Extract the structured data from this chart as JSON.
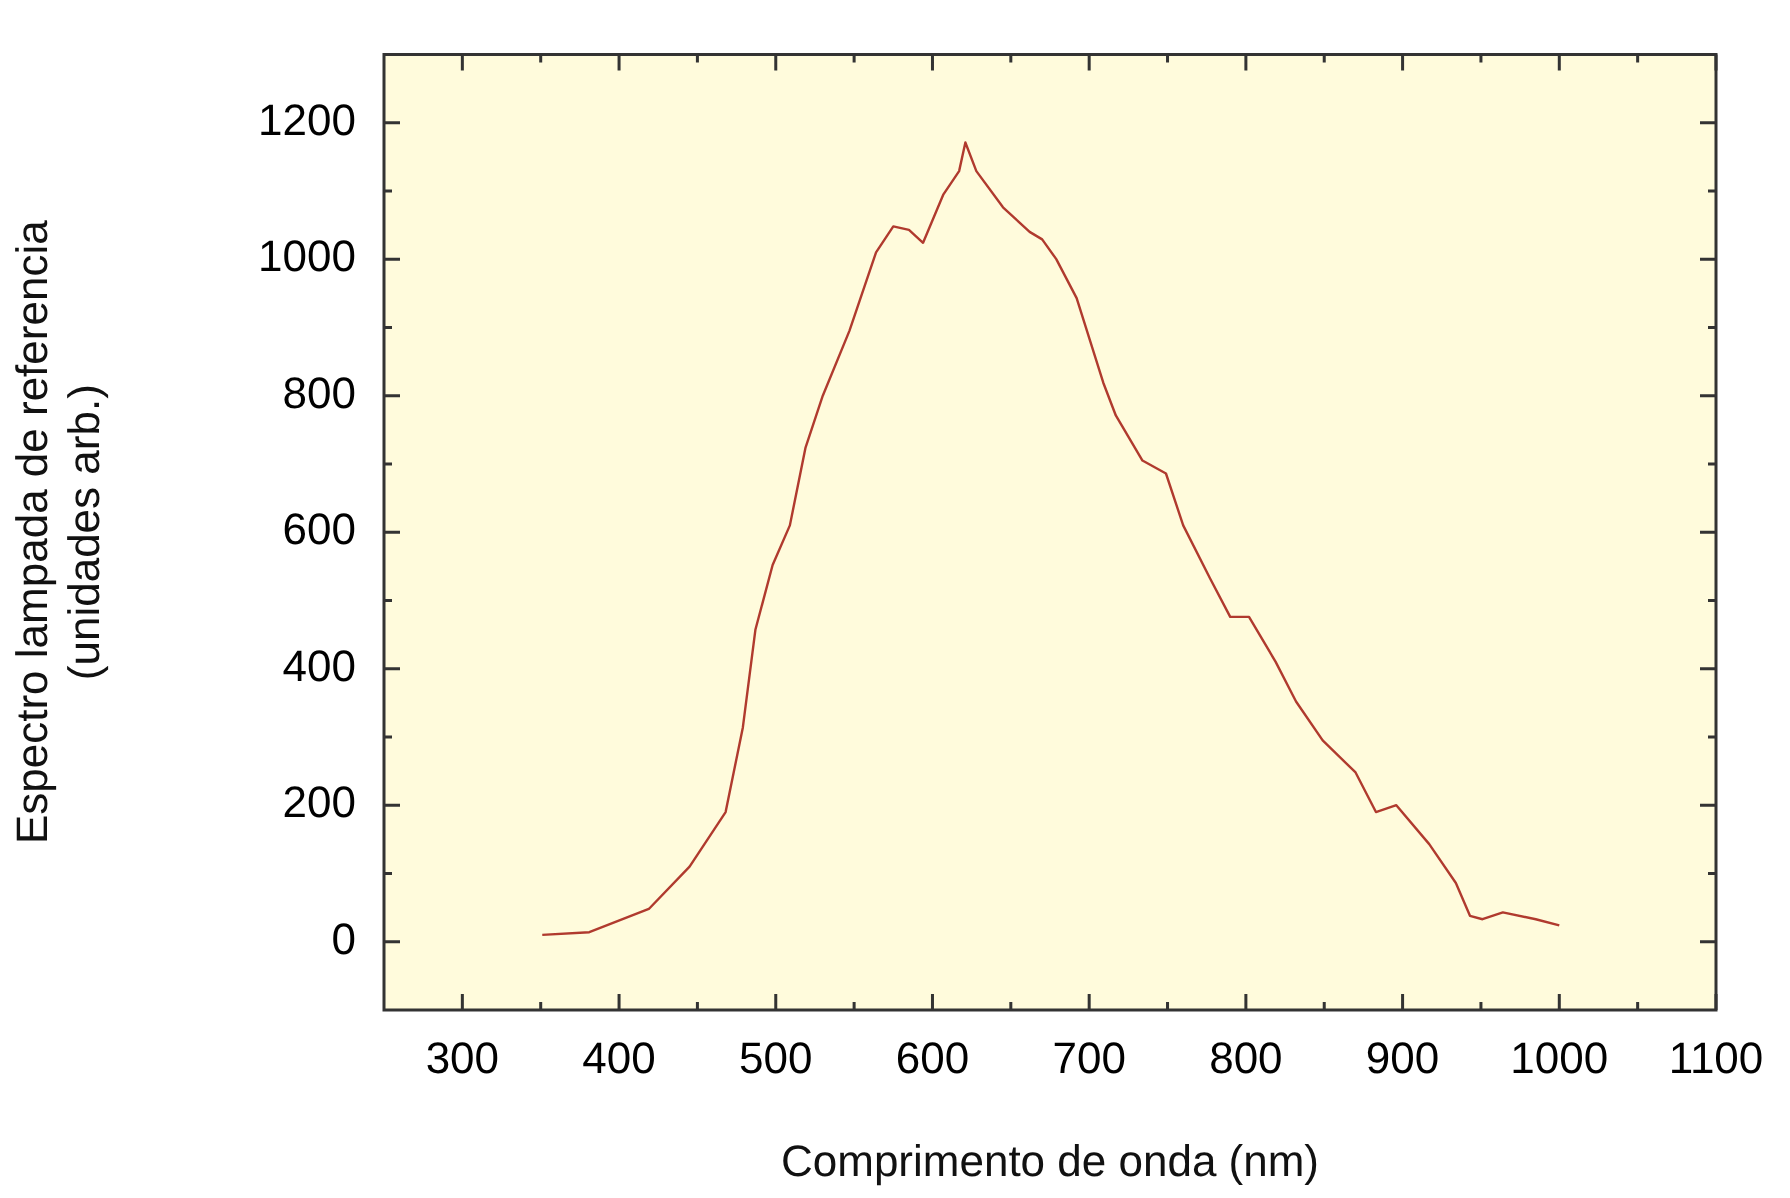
{
  "chart_data": {
    "type": "line",
    "xlabel": "Comprimento de onda (nm)",
    "ylabel": "Espectro lampada de referencia\n(unidades arb.)",
    "x": [
      351,
      381,
      419,
      445,
      468,
      479,
      487,
      498,
      509,
      519,
      530,
      547,
      564,
      575,
      585,
      594,
      607,
      617,
      621,
      628,
      645,
      662,
      670,
      679,
      692,
      709,
      717,
      734,
      749,
      760,
      777,
      790,
      802,
      819,
      832,
      849,
      870,
      883,
      896,
      917,
      934,
      943,
      951,
      964,
      985,
      1000
    ],
    "series": [
      {
        "color": "#b03a2e",
        "values": [
          10,
          14,
          48,
          110,
          190,
          314,
          457,
          552,
          610,
          724,
          800,
          895,
          1010,
          1048,
          1043,
          1024,
          1095,
          1129,
          1171,
          1129,
          1076,
          1040,
          1029,
          1000,
          943,
          819,
          771,
          705,
          686,
          610,
          533,
          476,
          476,
          410,
          352,
          295,
          248,
          190,
          200,
          143,
          86,
          38,
          33,
          43,
          33,
          24
        ]
      }
    ],
    "xlim": [
      250,
      1100
    ],
    "xticks": [
      300,
      {
        "value": 350,
        "label": null
      },
      400,
      {
        "value": 450,
        "label": null
      },
      500,
      {
        "value": 550,
        "label": null
      },
      600,
      {
        "value": 650,
        "label": null
      },
      700,
      {
        "value": 750,
        "label": null
      },
      800,
      {
        "value": 850,
        "label": null
      },
      900,
      {
        "value": 950,
        "label": null
      },
      1000,
      {
        "value": 1050,
        "label": null
      },
      1100
    ],
    "ylim": [
      -100,
      1300
    ],
    "yticks": [
      0,
      {
        "value": 100,
        "label": null
      },
      200,
      {
        "value": 300,
        "label": null
      },
      400,
      {
        "value": 500,
        "label": null
      },
      600,
      {
        "value": 700,
        "label": null
      },
      800,
      {
        "value": 900,
        "label": null
      },
      1000,
      {
        "value": 1100,
        "label": null
      },
      1200
    ],
    "grid": false,
    "marker": "none",
    "line_style": "solid"
  }
}
